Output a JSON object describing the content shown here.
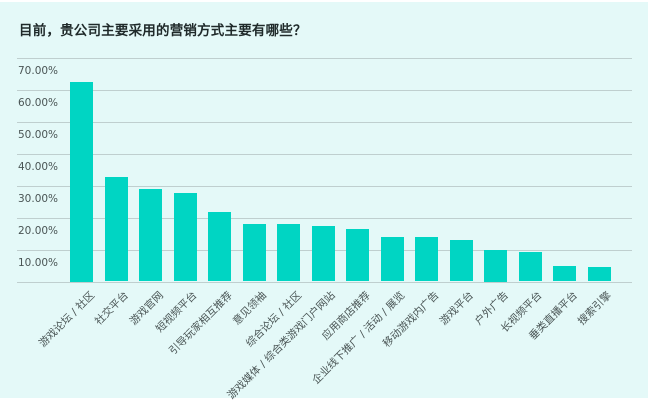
{
  "title": "目前，贵公司主要采用的营销方式主要有哪些？",
  "colors": {
    "background": "#E4F9F8",
    "bar": "#00D5C3",
    "gridline": "#BFCFCF",
    "text": "#4a5555"
  },
  "chart_data": {
    "type": "bar",
    "title": "目前，贵公司主要采用的营销方式主要有哪些？",
    "xlabel": "",
    "ylabel": "",
    "ylim": [
      0,
      70
    ],
    "yticks": [
      "10.00%",
      "20.00%",
      "30.00%",
      "40.00%",
      "50.00%",
      "60.00%",
      "70.00%"
    ],
    "grid": true,
    "legend": null,
    "categories": [
      "游戏论坛 / 社区",
      "社交平台",
      "游戏官网",
      "短视频平台",
      "引导玩家相互推荐",
      "意见领袖",
      "综合论坛 / 社区",
      "游戏媒体 / 综合类游戏门户网站",
      "应用商店推荐",
      "企业线下推广 / 活动 / 展览",
      "移动游戏内广告",
      "游戏平台",
      "户外广告",
      "长视频平台",
      "垂类直播平台",
      "搜索引擎"
    ],
    "values": [
      62.5,
      32.8,
      28.8,
      27.8,
      21.6,
      18.1,
      18.1,
      17.3,
      16.3,
      13.8,
      13.8,
      13.1,
      10.0,
      9.1,
      4.7,
      4.4
    ],
    "unit": "%"
  }
}
